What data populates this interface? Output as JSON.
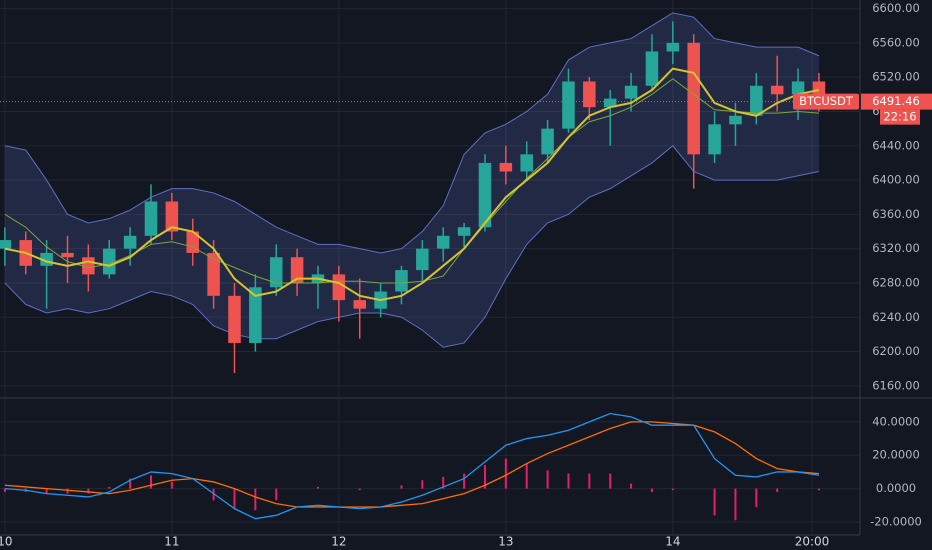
{
  "chart_data": [
    {
      "type": "candlestick",
      "symbol": "BTCUSDT",
      "last_price": 6491.46,
      "countdown": "22:16",
      "x": [
        0,
        3,
        6,
        9,
        12,
        15,
        18,
        21,
        24,
        27,
        30,
        33,
        36,
        39,
        42,
        45,
        48,
        51,
        54,
        57,
        60,
        63,
        66,
        69,
        72,
        75,
        78,
        81,
        84,
        87,
        90,
        93,
        96,
        99,
        102,
        105,
        108,
        111,
        114,
        117
      ],
      "candles": [
        [
          6320,
          6345,
          6300,
          6330
        ],
        [
          6330,
          6340,
          6290,
          6300
        ],
        [
          6300,
          6330,
          6250,
          6315
        ],
        [
          6315,
          6335,
          6280,
          6310
        ],
        [
          6310,
          6325,
          6270,
          6290
        ],
        [
          6290,
          6330,
          6285,
          6320
        ],
        [
          6320,
          6345,
          6300,
          6335
        ],
        [
          6335,
          6395,
          6325,
          6375
        ],
        [
          6375,
          6385,
          6330,
          6340
        ],
        [
          6340,
          6355,
          6300,
          6315
        ],
        [
          6315,
          6330,
          6250,
          6265
        ],
        [
          6265,
          6280,
          6175,
          6210
        ],
        [
          6210,
          6290,
          6200,
          6275
        ],
        [
          6275,
          6325,
          6265,
          6310
        ],
        [
          6310,
          6320,
          6265,
          6280
        ],
        [
          6280,
          6300,
          6250,
          6290
        ],
        [
          6290,
          6300,
          6235,
          6260
        ],
        [
          6260,
          6285,
          6215,
          6250
        ],
        [
          6250,
          6280,
          6240,
          6270
        ],
        [
          6270,
          6300,
          6255,
          6295
        ],
        [
          6295,
          6330,
          6280,
          6320
        ],
        [
          6320,
          6345,
          6305,
          6335
        ],
        [
          6335,
          6350,
          6320,
          6345
        ],
        [
          6345,
          6430,
          6340,
          6420
        ],
        [
          6420,
          6440,
          6395,
          6410
        ],
        [
          6410,
          6445,
          6400,
          6430
        ],
        [
          6430,
          6470,
          6420,
          6460
        ],
        [
          6460,
          6530,
          6455,
          6515
        ],
        [
          6515,
          6520,
          6470,
          6485
        ],
        [
          6485,
          6505,
          6440,
          6495
        ],
        [
          6495,
          6525,
          6480,
          6510
        ],
        [
          6510,
          6570,
          6505,
          6550
        ],
        [
          6550,
          6585,
          6535,
          6560
        ],
        [
          6560,
          6570,
          6390,
          6430
        ],
        [
          6430,
          6480,
          6420,
          6465
        ],
        [
          6465,
          6490,
          6440,
          6475
        ],
        [
          6475,
          6525,
          6465,
          6510
        ],
        [
          6510,
          6545,
          6480,
          6500
        ],
        [
          6500,
          6530,
          6470,
          6515
        ],
        [
          6515,
          6525,
          6480,
          6491.46
        ]
      ],
      "upper_band": [
        6440,
        6435,
        6400,
        6360,
        6350,
        6355,
        6365,
        6380,
        6390,
        6390,
        6385,
        6375,
        6360,
        6345,
        6335,
        6325,
        6325,
        6320,
        6315,
        6320,
        6340,
        6370,
        6430,
        6455,
        6465,
        6480,
        6500,
        6540,
        6555,
        6560,
        6565,
        6580,
        6595,
        6590,
        6565,
        6560,
        6555,
        6555,
        6555,
        6545
      ],
      "lower_band": [
        6280,
        6255,
        6245,
        6250,
        6245,
        6250,
        6260,
        6270,
        6265,
        6255,
        6230,
        6220,
        6215,
        6215,
        6225,
        6235,
        6240,
        6245,
        6245,
        6240,
        6225,
        6205,
        6210,
        6240,
        6285,
        6325,
        6350,
        6360,
        6380,
        6390,
        6405,
        6420,
        6440,
        6410,
        6400,
        6400,
        6400,
        6400,
        6405,
        6410
      ],
      "ma_fast": [
        6320,
        6315,
        6305,
        6300,
        6305,
        6300,
        6310,
        6330,
        6345,
        6340,
        6320,
        6285,
        6265,
        6270,
        6285,
        6285,
        6280,
        6265,
        6260,
        6265,
        6280,
        6300,
        6320,
        6350,
        6380,
        6400,
        6420,
        6450,
        6475,
        6485,
        6490,
        6505,
        6530,
        6525,
        6490,
        6480,
        6475,
        6490,
        6500,
        6505
      ],
      "ma_slow": [
        6360,
        6345,
        6322,
        6305,
        6298,
        6302,
        6312,
        6325,
        6328,
        6322,
        6308,
        6298,
        6288,
        6280,
        6280,
        6280,
        6282,
        6282,
        6280,
        6280,
        6282,
        6288,
        6320,
        6348,
        6375,
        6402,
        6425,
        6450,
        6468,
        6475,
        6485,
        6500,
        6518,
        6500,
        6482,
        6480,
        6478,
        6478,
        6480,
        6478
      ],
      "up_color": "#26a69a",
      "down_color": "#ef5350",
      "band_color": "#5d6fc4",
      "ma_fast_color": "#d4c52a",
      "ma_slow_color": "#7aa83a",
      "last_color": "#ef5350",
      "xlim": [
        -0.7,
        122.9
      ],
      "xticks": [
        {
          "value": 0,
          "label": "10"
        },
        {
          "value": 24,
          "label": "11"
        },
        {
          "value": 48,
          "label": "12"
        },
        {
          "value": 72,
          "label": "13"
        },
        {
          "value": 96,
          "label": "14"
        },
        {
          "value": 116,
          "label": "20:00"
        }
      ],
      "ylim": [
        6147,
        6610
      ],
      "yticks": [
        {
          "value": 6160,
          "label": "6160.00"
        },
        {
          "value": 6200,
          "label": "6200.00"
        },
        {
          "value": 6240,
          "label": "6240.00"
        },
        {
          "value": 6280,
          "label": "6280.00"
        },
        {
          "value": 6320,
          "label": "6320.00"
        },
        {
          "value": 6360,
          "label": "6360.00"
        },
        {
          "value": 6400,
          "label": "6400.00"
        },
        {
          "value": 6440,
          "label": "6440.00"
        },
        {
          "value": 6480,
          "label": "6480.00"
        },
        {
          "value": 6520,
          "label": "6520.00"
        },
        {
          "value": 6560,
          "label": "6560.00"
        },
        {
          "value": 6600,
          "label": "6600.00"
        }
      ],
      "grid": true
    },
    {
      "type": "macd",
      "macd": [
        0,
        -1,
        -3,
        -4,
        -5,
        -2,
        5,
        10,
        9,
        6,
        -3,
        -12,
        -18,
        -16,
        -11,
        -10,
        -11,
        -12,
        -11,
        -8,
        -4,
        1,
        6,
        16,
        26,
        30,
        32,
        35,
        40,
        45,
        43,
        38,
        38,
        38,
        18,
        8,
        7,
        10,
        10,
        8
      ],
      "signal": [
        2,
        1,
        0,
        -1,
        -2,
        -3,
        -1,
        2,
        5,
        6,
        4,
        0,
        -5,
        -9,
        -11,
        -11,
        -11,
        -11,
        -11,
        -10,
        -9,
        -6,
        -3,
        2,
        8,
        15,
        21,
        26,
        31,
        36,
        40,
        40,
        39,
        38,
        34,
        27,
        18,
        12,
        10,
        9
      ],
      "histogram": [
        -2,
        -2,
        -3,
        -3,
        -3,
        1,
        6,
        8,
        4,
        0,
        -7,
        -12,
        -13,
        -7,
        0,
        1,
        0,
        -1,
        0,
        2,
        5,
        7,
        9,
        14,
        18,
        15,
        11,
        9,
        9,
        9,
        3,
        -2,
        -1,
        0,
        -16,
        -19,
        -11,
        -2,
        0,
        -1
      ],
      "macd_color": "#2196f3",
      "signal_color": "#ff6d00",
      "histogram_color": "#e91e63",
      "ylim": [
        -27.8,
        53.7
      ],
      "yticks": [
        {
          "value": -20,
          "label": "-20.0000"
        },
        {
          "value": 0,
          "label": "0.0000"
        },
        {
          "value": 20,
          "label": "20.0000"
        },
        {
          "value": 40,
          "label": "40.0000"
        }
      ],
      "grid": true
    }
  ]
}
